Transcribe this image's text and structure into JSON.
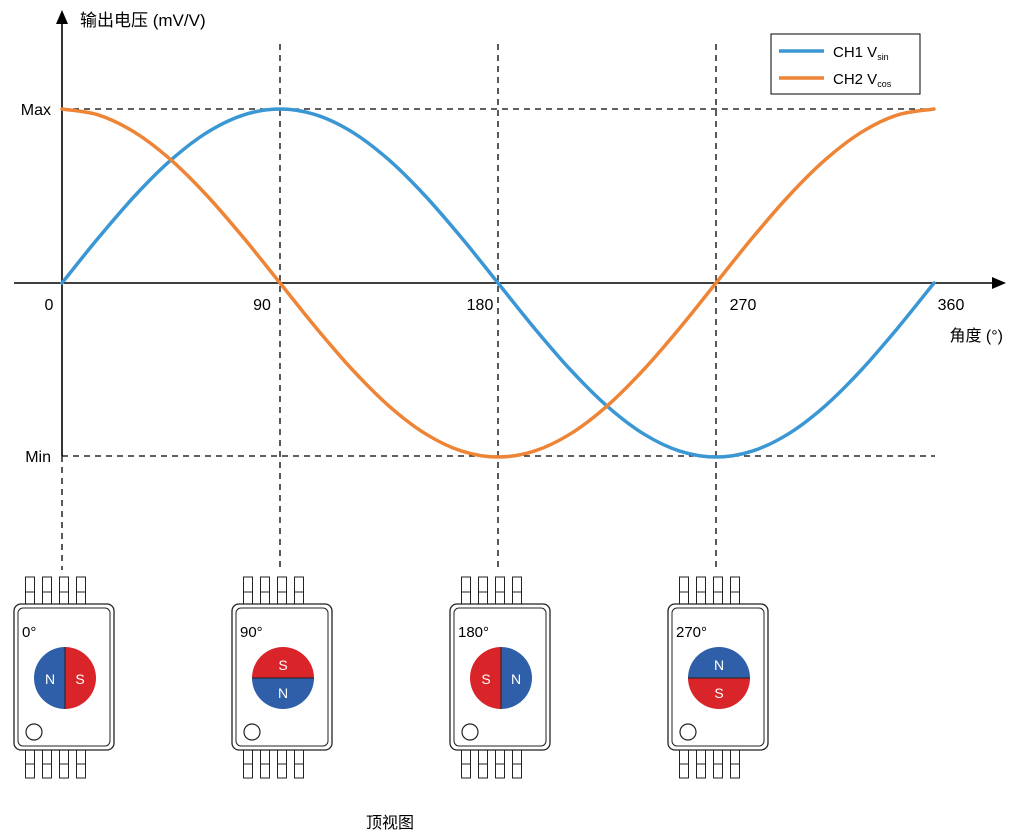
{
  "chart_data": {
    "type": "line",
    "ylabel": "输出电压 (mV/V)",
    "xlabel": "角度 (°)",
    "x_ticks": [
      "0",
      "90",
      "180",
      "270",
      "360"
    ],
    "y_ticks": [
      "Max",
      "Min"
    ],
    "xlim": [
      0,
      360
    ],
    "ylim": [
      -1,
      1
    ],
    "grid": "dashed at 90, 180, 270 and at Max/Min",
    "legend_position": "top-right",
    "series": [
      {
        "name": "CH1 V",
        "name_sub": "sin",
        "color": "#3a97d4",
        "x": [
          0,
          15,
          30,
          45,
          60,
          75,
          90,
          105,
          120,
          135,
          150,
          165,
          180,
          195,
          210,
          225,
          240,
          255,
          270,
          285,
          300,
          315,
          330,
          345,
          360
        ],
        "values": [
          0,
          0.259,
          0.5,
          0.707,
          0.866,
          0.966,
          1,
          0.966,
          0.866,
          0.707,
          0.5,
          0.259,
          0,
          -0.259,
          -0.5,
          -0.707,
          -0.866,
          -0.966,
          -1,
          -0.966,
          -0.866,
          -0.707,
          -0.5,
          -0.259,
          0
        ]
      },
      {
        "name": "CH2 V",
        "name_sub": "cos",
        "color": "#ee8435",
        "x": [
          0,
          15,
          30,
          45,
          60,
          75,
          90,
          105,
          120,
          135,
          150,
          165,
          180,
          195,
          210,
          225,
          240,
          255,
          270,
          285,
          300,
          315,
          330,
          345,
          360
        ],
        "values": [
          1,
          0.966,
          0.866,
          0.707,
          0.5,
          0.259,
          0,
          -0.259,
          -0.5,
          -0.707,
          -0.866,
          -0.966,
          -1,
          -0.966,
          -0.866,
          -0.707,
          -0.5,
          -0.259,
          0,
          0.259,
          0.5,
          0.707,
          0.866,
          0.966,
          1
        ]
      }
    ]
  },
  "chips": [
    {
      "label": "0°",
      "orientation": "N|S",
      "left": "N",
      "right": "S"
    },
    {
      "label": "90°",
      "orientation": "S/N",
      "top": "S",
      "bottom": "N"
    },
    {
      "label": "180°",
      "orientation": "S|N",
      "left": "S",
      "right": "N"
    },
    {
      "label": "270°",
      "orientation": "N/S",
      "top": "N",
      "bottom": "S"
    }
  ],
  "caption": "顶视图",
  "colors": {
    "north": "#2f5fa8",
    "south": "#d9252a",
    "sin": "#3a97d4",
    "cos": "#ee8435"
  }
}
